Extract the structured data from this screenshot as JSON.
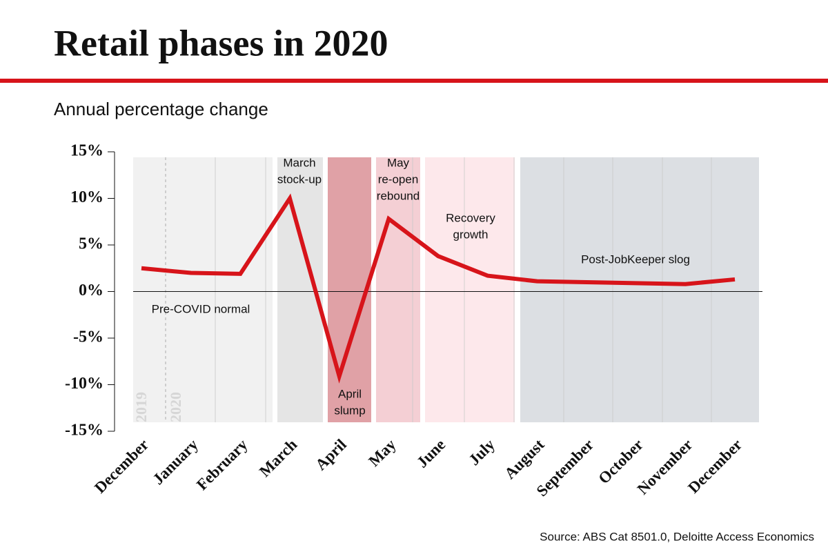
{
  "chart_data": {
    "type": "line",
    "title": "Retail phases in 2020",
    "subtitle": "Annual percentage change",
    "source": "Source: ABS Cat 8501.0, Deloitte Access Economics",
    "categories": [
      "December",
      "January",
      "February",
      "March",
      "April",
      "May",
      "June",
      "July",
      "August",
      "September",
      "October",
      "November",
      "December"
    ],
    "values": [
      2.5,
      2.0,
      1.9,
      10.0,
      -9.1,
      7.8,
      3.8,
      1.7,
      1.1,
      1.0,
      0.9,
      0.8,
      1.3
    ],
    "color": "#d7141a",
    "ylim": [
      -15,
      15
    ],
    "yticks": [
      {
        "value": -15,
        "label": "-15%"
      },
      {
        "value": -10,
        "label": "-10%"
      },
      {
        "value": -5,
        "label": "-5%"
      },
      {
        "value": 0,
        "label": "0%"
      },
      {
        "value": 5,
        "label": "5%"
      },
      {
        "value": 10,
        "label": "10%"
      },
      {
        "value": 15,
        "label": "15%"
      }
    ],
    "annotations": [
      {
        "lines": [
          "Pre-COVID normal"
        ]
      },
      {
        "lines": [
          "March",
          "stock-up"
        ]
      },
      {
        "lines": [
          "April",
          "slump"
        ]
      },
      {
        "lines": [
          "May",
          "re-open",
          "rebound"
        ]
      },
      {
        "lines": [
          "Recovery",
          "growth"
        ]
      },
      {
        "lines": [
          "Post-JobKeeper slog"
        ]
      }
    ],
    "year_labels": [
      "2019",
      "2020"
    ]
  }
}
